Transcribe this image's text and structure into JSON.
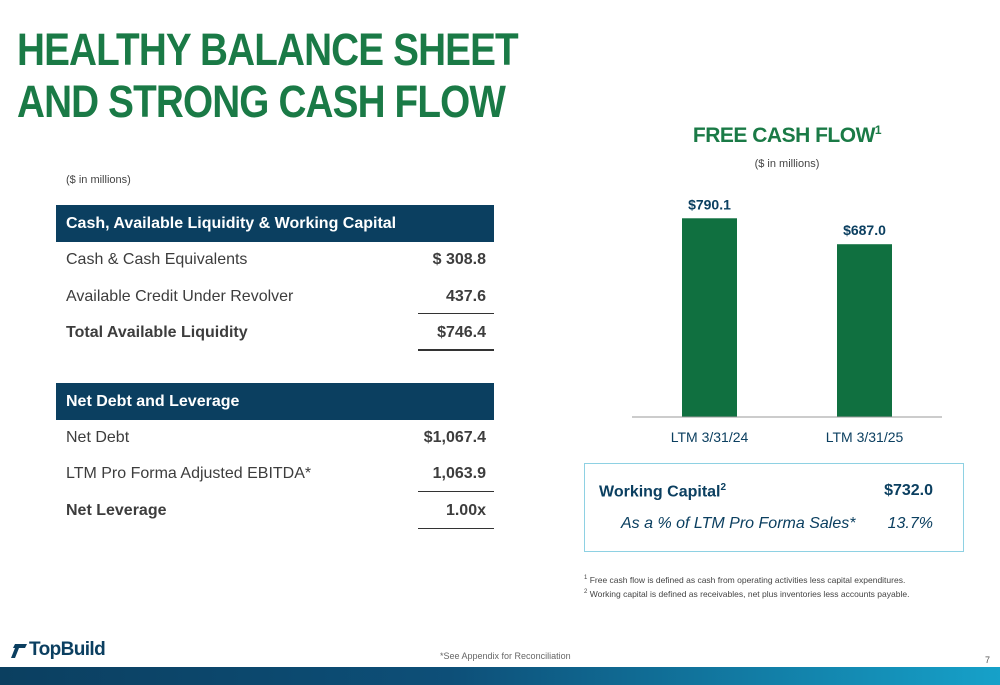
{
  "title": {
    "line1": "HEALTHY BALANCE SHEET",
    "line2": "AND STRONG CASH FLOW"
  },
  "left_units": "($ in millions)",
  "liquidity": {
    "header": "Cash, Available Liquidity & Working Capital",
    "rows": [
      {
        "label": "Cash & Cash Equivalents",
        "value": "$ 308.8"
      },
      {
        "label": "Available Credit Under Revolver",
        "value": "437.6"
      },
      {
        "label": "Total Available Liquidity",
        "value": "$746.4"
      }
    ]
  },
  "leverage": {
    "header": "Net Debt and Leverage",
    "rows": [
      {
        "label": "Net Debt",
        "value": "$1,067.4"
      },
      {
        "label": "LTM Pro Forma Adjusted EBITDA*",
        "value": "1,063.9"
      },
      {
        "label": "Net Leverage",
        "value": "1.00x"
      }
    ]
  },
  "chart_data": {
    "type": "bar",
    "title": "FREE CASH FLOW",
    "title_footnote_marker": "1",
    "subtitle": "($ in millions)",
    "categories": [
      "LTM 3/31/24",
      "LTM 3/31/25"
    ],
    "values": [
      790.1,
      687.0
    ],
    "value_labels": [
      "$790.1",
      "$687.0"
    ],
    "bar_color": "#107040",
    "grid": false,
    "legend": "none"
  },
  "working_capital": {
    "label": "Working Capital",
    "footnote_marker": "2",
    "value": "$732.0",
    "sub_label": "As a % of LTM Pro Forma Sales*",
    "sub_value": "13.7%"
  },
  "footnotes": [
    {
      "marker": "1",
      "text": "Free cash flow is defined as cash from operating activities less capital expenditures."
    },
    {
      "marker": "2",
      "text": "Working capital is defined as receivables, net plus inventories less accounts payable."
    }
  ],
  "logo": {
    "text": "TopBuild"
  },
  "appendix_note": "*See Appendix for Reconciliation",
  "page_number": "7",
  "colors": {
    "brand_green": "#1a7a46",
    "navy": "#0b3f60",
    "bar_green": "#107040",
    "box_border": "#8ed1e3"
  }
}
